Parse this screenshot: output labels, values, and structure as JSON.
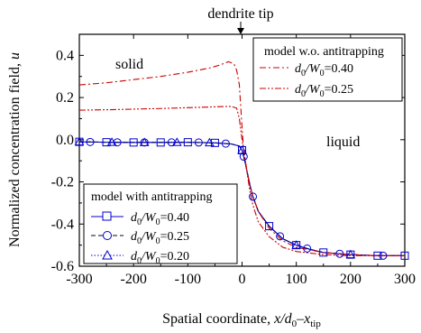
{
  "chart_data": {
    "type": "line",
    "xlabel_main": "Spatial coordinate, ",
    "xlabel_var": "x/d",
    "xlabel_sub0": "0",
    "xlabel_tail": "–x",
    "xlabel_sub_tip": "tip",
    "ylabel": "Normalized concentration field, ",
    "ylabel_var": "u",
    "xlim": [
      -300,
      300
    ],
    "ylim": [
      -0.6,
      0.5
    ],
    "xticks": [
      -300,
      -200,
      -100,
      0,
      100,
      200,
      300
    ],
    "xtick_labels": [
      "-300",
      "-200",
      "-100",
      "0",
      "100",
      "200",
      "300"
    ],
    "yticks": [
      -0.6,
      -0.4,
      -0.2,
      0.0,
      0.2,
      0.4
    ],
    "ytick_labels": [
      "-0.6",
      "-0.4",
      "-0.2",
      "0.0",
      "0.2",
      "0.4"
    ],
    "annotations": {
      "top": "dendrite tip",
      "solid": "solid",
      "liquid": "liquid"
    },
    "legend_antitrapping": {
      "title": "model with antitrapping",
      "entries": [
        {
          "label_pre": "d",
          "sub": "0",
          "mid": "/W",
          "sub2": "0",
          "post": "=0.40"
        },
        {
          "label_pre": "d",
          "sub": "0",
          "mid": "/W",
          "sub2": "0",
          "post": "=0.25"
        },
        {
          "label_pre": "d",
          "sub": "0",
          "mid": "/W",
          "sub2": "0",
          "post": "=0.20"
        }
      ]
    },
    "legend_no_antitrapping": {
      "title": "model w.o. antitrapping",
      "entries": [
        {
          "label_pre": "d",
          "sub": "0",
          "mid": "/W",
          "sub2": "0",
          "post": "=0.40"
        },
        {
          "label_pre": "d",
          "sub": "0",
          "mid": "/W",
          "sub2": "0",
          "post": "=0.25"
        }
      ]
    },
    "series": [
      {
        "name": "model with antitrapping, d0/W0=0.40",
        "color": "#0000cc",
        "marker": "square",
        "dash": "solid",
        "x": [
          -300,
          -250,
          -200,
          -150,
          -100,
          -50,
          -20,
          -5,
          0,
          5,
          10,
          15,
          20,
          30,
          50,
          75,
          100,
          125,
          150,
          175,
          200,
          250,
          300
        ],
        "y": [
          -0.01,
          -0.012,
          -0.013,
          -0.013,
          -0.012,
          -0.015,
          -0.02,
          -0.03,
          -0.05,
          -0.1,
          -0.16,
          -0.22,
          -0.27,
          -0.34,
          -0.41,
          -0.47,
          -0.5,
          -0.52,
          -0.535,
          -0.54,
          -0.545,
          -0.55,
          -0.55
        ],
        "markers_x": [
          -300,
          -250,
          -200,
          -150,
          -100,
          -50,
          0,
          50,
          100,
          150,
          200,
          250,
          300
        ]
      },
      {
        "name": "model with antitrapping, d0/W0=0.25",
        "color": "#0000cc",
        "marker": "circle",
        "dash": "dashed",
        "x": [
          -300,
          -250,
          -200,
          -150,
          -100,
          -50,
          -20,
          -5,
          0,
          5,
          10,
          15,
          20,
          30,
          50,
          75,
          100,
          125,
          150,
          175,
          200,
          250,
          300
        ],
        "y": [
          -0.01,
          -0.012,
          -0.013,
          -0.013,
          -0.012,
          -0.015,
          -0.02,
          -0.03,
          -0.05,
          -0.1,
          -0.16,
          -0.22,
          -0.27,
          -0.34,
          -0.41,
          -0.47,
          -0.5,
          -0.52,
          -0.535,
          -0.54,
          -0.545,
          -0.55,
          -0.55
        ],
        "markers_x": [
          -280,
          -230,
          -180,
          -130,
          -80,
          -30,
          3,
          20,
          70,
          120,
          180,
          260
        ]
      },
      {
        "name": "model with antitrapping, d0/W0=0.20",
        "color": "#0000cc",
        "marker": "triangle",
        "dash": "dotted",
        "x": [
          -300,
          -250,
          -200,
          -150,
          -100,
          -50,
          -20,
          -5,
          0,
          5,
          10,
          15,
          20,
          30,
          50,
          75,
          100,
          125,
          150,
          175,
          200,
          250,
          300
        ],
        "y": [
          -0.01,
          -0.012,
          -0.013,
          -0.013,
          -0.012,
          -0.015,
          -0.02,
          -0.03,
          -0.05,
          -0.1,
          -0.16,
          -0.22,
          -0.27,
          -0.34,
          -0.41,
          -0.47,
          -0.5,
          -0.52,
          -0.535,
          -0.54,
          -0.545,
          -0.55,
          -0.55
        ],
        "markers_x": [
          -300,
          -240,
          -180,
          -120,
          -60,
          0,
          100,
          200
        ]
      },
      {
        "name": "model w.o. antitrapping, d0/W0=0.40",
        "color": "#cc0000",
        "marker": "none",
        "dash": "dashdot",
        "x": [
          -300,
          -250,
          -200,
          -150,
          -100,
          -60,
          -40,
          -25,
          -15,
          -10,
          -5,
          0,
          3,
          6,
          10,
          15,
          20,
          30,
          50,
          75,
          100,
          150,
          200,
          250,
          300
        ],
        "y": [
          0.26,
          0.27,
          0.285,
          0.3,
          0.32,
          0.34,
          0.355,
          0.37,
          0.36,
          0.33,
          0.26,
          0.06,
          -0.05,
          -0.1,
          -0.16,
          -0.22,
          -0.27,
          -0.34,
          -0.42,
          -0.48,
          -0.51,
          -0.535,
          -0.545,
          -0.55,
          -0.55
        ]
      },
      {
        "name": "model w.o. antitrapping, d0/W0=0.25",
        "color": "#cc0000",
        "marker": "none",
        "dash": "dashdotdot",
        "x": [
          -300,
          -250,
          -200,
          -150,
          -100,
          -60,
          -40,
          -20,
          -10,
          -5,
          0,
          5,
          10,
          15,
          20,
          30,
          50,
          75,
          100,
          150,
          200,
          250,
          300
        ],
        "y": [
          0.14,
          0.142,
          0.145,
          0.148,
          0.152,
          0.155,
          0.157,
          0.158,
          0.15,
          0.1,
          0.0,
          -0.08,
          -0.17,
          -0.25,
          -0.31,
          -0.39,
          -0.46,
          -0.51,
          -0.53,
          -0.545,
          -0.55,
          -0.55,
          -0.55
        ]
      }
    ]
  }
}
